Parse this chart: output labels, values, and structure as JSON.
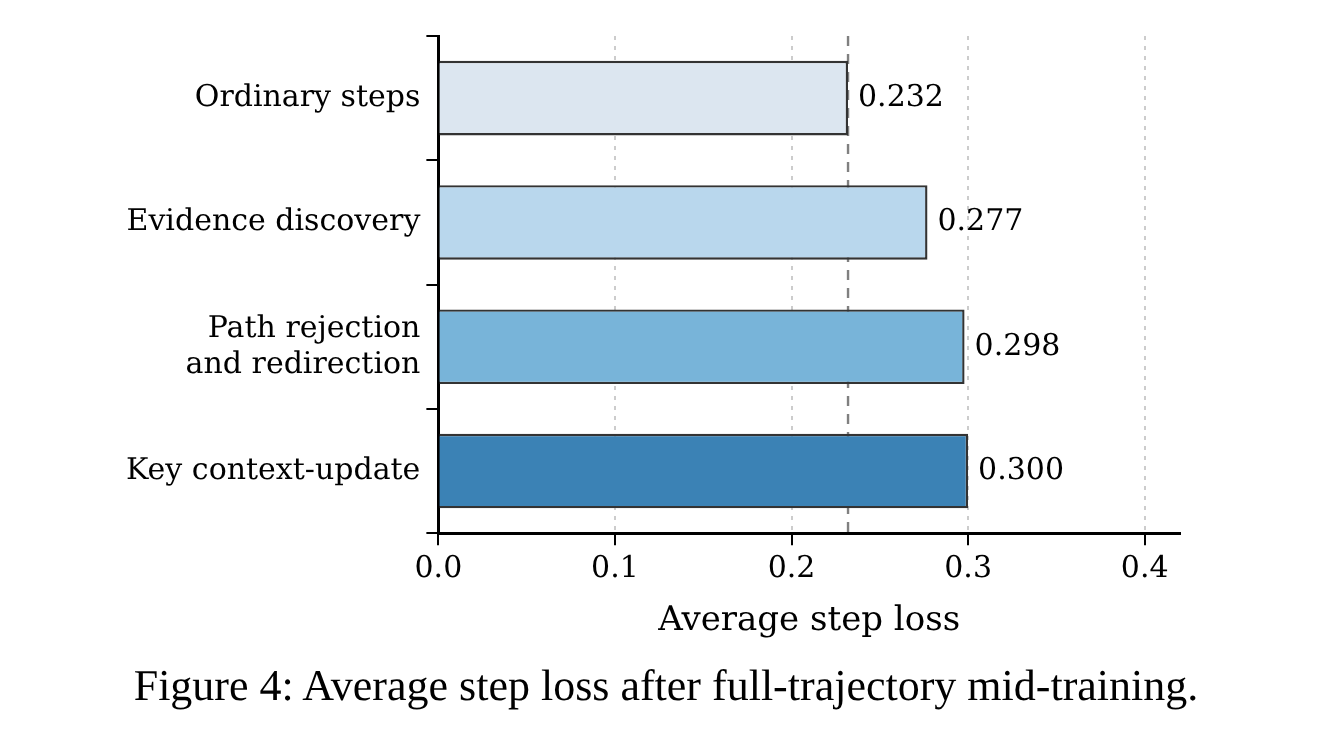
{
  "chart_data": {
    "type": "bar",
    "orientation": "horizontal",
    "xlabel": "Average step loss",
    "categories": [
      "Ordinary steps",
      "Evidence discovery",
      "Path rejection\nand redirection",
      "Key context-update"
    ],
    "values": [
      0.232,
      0.277,
      0.298,
      0.3
    ],
    "colors": [
      "#dce6f0",
      "#b9d7ed",
      "#78b4d9",
      "#3b82b5"
    ],
    "value_labels": [
      "0.232",
      "0.277",
      "0.298",
      "0.300"
    ],
    "xlim": [
      0,
      0.42
    ],
    "xticks": [
      {
        "value": 0,
        "label": "0.0"
      },
      {
        "value": 0.1,
        "label": "0.1"
      },
      {
        "value": 0.2,
        "label": "0.2"
      },
      {
        "value": 0.3,
        "label": "0.3"
      },
      {
        "value": 0.4,
        "label": "0.4"
      }
    ],
    "grid": "x",
    "ref_lines": [
      {
        "axis": "x",
        "value": 0.232,
        "color": "#808080",
        "line_style": "dashed"
      }
    ],
    "annotations": [
      "Figure 4:  Average step loss after full-trajectory mid-training."
    ]
  }
}
